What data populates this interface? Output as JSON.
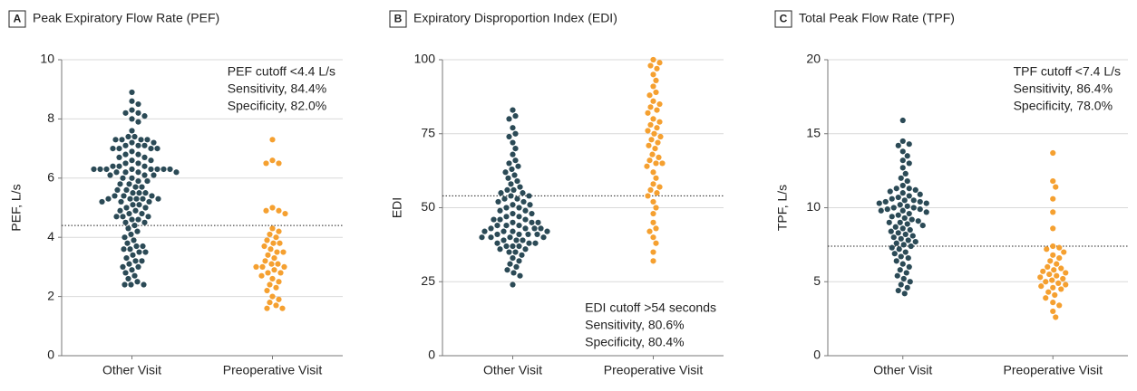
{
  "chart_data": [
    {
      "type": "beeswarm",
      "panel": "A",
      "title": "Peak Expiratory Flow Rate (PEF)",
      "ylabel": "PEF, L/s",
      "categories": [
        "Other Visit",
        "Preoperative Visit"
      ],
      "ylim": [
        0,
        10
      ],
      "yticks": [
        0,
        2,
        4,
        6,
        8,
        10
      ],
      "grid": true,
      "cutoff": 4.4,
      "annotation": [
        "PEF cutoff <4.4 L/s",
        "Sensitivity, 84.4%",
        "Specificity, 82.0%"
      ],
      "annotation_corner": "top-right",
      "groups": [
        {
          "color": "#2b4a56",
          "values": [
            8.9,
            8.6,
            8.5,
            8.3,
            8.2,
            8.2,
            8.1,
            8.0,
            7.9,
            7.6,
            7.4,
            7.4,
            7.3,
            7.3,
            7.3,
            7.3,
            7.2,
            7.2,
            7.1,
            7.1,
            7.1,
            7.0,
            7.0,
            7.0,
            7.0,
            6.9,
            6.8,
            6.8,
            6.7,
            6.7,
            6.6,
            6.6,
            6.5,
            6.5,
            6.4,
            6.4,
            6.4,
            6.3,
            6.3,
            6.3,
            6.3,
            6.3,
            6.3,
            6.3,
            6.3,
            6.2,
            6.2,
            6.2,
            6.2,
            6.1,
            6.1,
            6.1,
            6.0,
            6.0,
            5.9,
            5.9,
            5.8,
            5.8,
            5.7,
            5.7,
            5.6,
            5.6,
            5.5,
            5.5,
            5.5,
            5.4,
            5.4,
            5.4,
            5.3,
            5.3,
            5.3,
            5.3,
            5.3,
            5.2,
            5.2,
            5.2,
            5.1,
            5.1,
            5.0,
            5.0,
            4.9,
            4.9,
            4.8,
            4.8,
            4.7,
            4.7,
            4.7,
            4.6,
            4.6,
            4.5,
            4.5,
            4.4,
            4.3,
            4.2,
            4.1,
            4.0,
            3.9,
            3.8,
            3.7,
            3.7,
            3.6,
            3.6,
            3.5,
            3.5,
            3.4,
            3.3,
            3.2,
            3.2,
            3.1,
            3.0,
            3.0,
            2.9,
            2.8,
            2.7,
            2.6,
            2.5,
            2.4,
            2.4,
            2.4
          ]
        },
        {
          "color": "#f5a030",
          "values": [
            7.3,
            6.6,
            6.5,
            6.5,
            5.0,
            4.9,
            4.9,
            4.8,
            4.3,
            4.2,
            4.1,
            4.0,
            3.9,
            3.8,
            3.8,
            3.7,
            3.6,
            3.5,
            3.5,
            3.4,
            3.3,
            3.2,
            3.1,
            3.1,
            3.0,
            3.0,
            3.0,
            2.9,
            2.8,
            2.8,
            2.7,
            2.6,
            2.5,
            2.4,
            2.3,
            2.2,
            2.0,
            1.9,
            1.8,
            1.7,
            1.6,
            1.6
          ]
        }
      ]
    },
    {
      "type": "beeswarm",
      "panel": "B",
      "title": "Expiratory Disproportion Index (EDI)",
      "ylabel": "EDI",
      "categories": [
        "Other Visit",
        "Preoperative Visit"
      ],
      "ylim": [
        0,
        100
      ],
      "yticks": [
        0,
        25,
        50,
        75,
        100
      ],
      "grid": true,
      "cutoff": 54,
      "annotation": [
        "EDI cutoff >54 seconds",
        "Sensitivity, 80.6%",
        "Specificity, 80.4%"
      ],
      "annotation_corner": "bottom-right",
      "groups": [
        {
          "color": "#2b4a56",
          "values": [
            83,
            81,
            80,
            77,
            75,
            74,
            72,
            70,
            68,
            66,
            65,
            64,
            63,
            62,
            61,
            60,
            59,
            58,
            57,
            56,
            56,
            55,
            55,
            54,
            54,
            53,
            53,
            52,
            52,
            51,
            51,
            50,
            50,
            49,
            49,
            48,
            48,
            47,
            47,
            46,
            46,
            46,
            45,
            45,
            45,
            44,
            44,
            44,
            43,
            43,
            43,
            43,
            42,
            42,
            42,
            42,
            41,
            41,
            41,
            41,
            40,
            40,
            40,
            40,
            39,
            39,
            39,
            38,
            38,
            38,
            37,
            37,
            37,
            36,
            36,
            35,
            35,
            34,
            33,
            32,
            31,
            30,
            29,
            28,
            27,
            24
          ]
        },
        {
          "color": "#f5a030",
          "values": [
            100,
            99,
            98,
            97,
            95,
            93,
            91,
            89,
            88,
            86,
            85,
            84,
            83,
            82,
            80,
            79,
            78,
            77,
            76,
            75,
            74,
            73,
            72,
            71,
            70,
            68,
            67,
            66,
            65,
            65,
            64,
            62,
            60,
            58,
            57,
            56,
            55,
            54,
            52,
            50,
            48,
            45,
            43,
            42,
            40,
            38,
            35,
            32
          ]
        }
      ]
    },
    {
      "type": "beeswarm",
      "panel": "C",
      "title": "Total Peak Flow Rate (TPF)",
      "ylabel": "TPF, L/s",
      "categories": [
        "Other Visit",
        "Preoperative Visit"
      ],
      "ylim": [
        0,
        20
      ],
      "yticks": [
        0,
        5,
        10,
        15,
        20
      ],
      "grid": true,
      "cutoff": 7.4,
      "annotation": [
        "TPF cutoff <7.4 L/s",
        "Sensitivity, 86.4%",
        "Specificity, 78.0%"
      ],
      "annotation_corner": "top-right",
      "groups": [
        {
          "color": "#2b4a56",
          "values": [
            15.9,
            14.5,
            14.3,
            14.2,
            13.8,
            13.5,
            13.2,
            13.0,
            12.7,
            12.3,
            12.0,
            11.8,
            11.5,
            11.3,
            11.3,
            11.2,
            11.1,
            11.0,
            10.9,
            10.8,
            10.7,
            10.6,
            10.5,
            10.5,
            10.4,
            10.4,
            10.3,
            10.3,
            10.2,
            10.1,
            10.0,
            10.0,
            9.9,
            9.9,
            9.8,
            9.8,
            9.7,
            9.6,
            9.5,
            9.4,
            9.3,
            9.2,
            9.1,
            9.0,
            9.0,
            8.9,
            8.8,
            8.7,
            8.6,
            8.5,
            8.4,
            8.3,
            8.2,
            8.1,
            8.0,
            7.9,
            7.8,
            7.7,
            7.6,
            7.5,
            7.4,
            7.3,
            7.2,
            7.0,
            6.9,
            6.7,
            6.6,
            6.4,
            6.2,
            6.0,
            5.8,
            5.6,
            5.4,
            5.2,
            5.0,
            4.8,
            4.6,
            4.4,
            4.2
          ]
        },
        {
          "color": "#f5a030",
          "values": [
            13.7,
            11.8,
            11.4,
            10.6,
            9.7,
            8.6,
            7.4,
            7.3,
            7.2,
            7.0,
            6.8,
            6.6,
            6.4,
            6.2,
            6.0,
            5.9,
            5.8,
            5.7,
            5.6,
            5.5,
            5.4,
            5.3,
            5.2,
            5.1,
            5.0,
            4.9,
            4.8,
            4.7,
            4.6,
            4.5,
            4.3,
            4.1,
            3.9,
            3.6,
            3.4,
            3.0,
            2.6
          ]
        }
      ]
    }
  ]
}
